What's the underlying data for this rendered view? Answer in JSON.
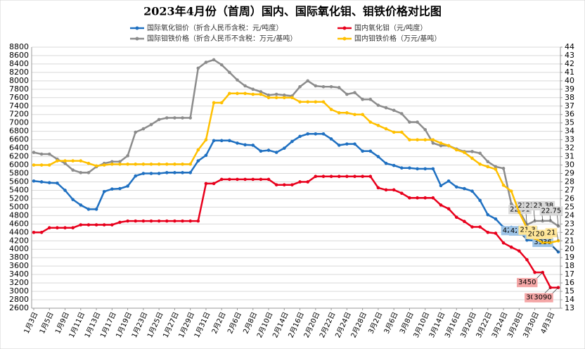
{
  "chart_data": {
    "type": "line",
    "title": "2023年4月份（首周）国内、国际氧化钼、钼铁价格对比图",
    "categories": [
      "1月3日",
      null,
      "1月5日",
      null,
      "1月9日",
      null,
      "1月11日",
      null,
      "1月13日",
      null,
      "1月17日",
      null,
      "1月19日",
      null,
      "1月23日",
      null,
      "1月25日",
      null,
      "1月27日",
      null,
      "1月29日",
      null,
      "1月31日",
      null,
      "2月2日",
      null,
      "2月6日",
      null,
      "2月8日",
      null,
      "2月10日",
      null,
      "2月14日",
      null,
      "2月16日",
      null,
      "2月20日",
      null,
      "2月22日",
      null,
      "2月24日",
      null,
      "2月28日",
      null,
      "3月2日",
      null,
      "3月6日",
      null,
      "3月8日",
      null,
      "3月10日",
      null,
      "3月14日",
      null,
      "3月16日",
      null,
      "3月20日",
      null,
      "3月22日",
      null,
      "3月24日",
      null,
      "3月28日",
      null,
      "3月30日",
      null,
      "4月3日",
      null
    ],
    "series": [
      {
        "name": "国际氧化钼价（折合人民币含税：元/吨度）",
        "color": "#1f70c1",
        "axis": "y",
        "values": [
          5620,
          5600,
          5580,
          5570,
          5400,
          5180,
          5050,
          4950,
          4950,
          5370,
          5430,
          5440,
          5500,
          5740,
          5800,
          5800,
          5800,
          5820,
          5820,
          5820,
          5820,
          6100,
          6230,
          6580,
          6580,
          6580,
          6520,
          6480,
          6470,
          6330,
          6350,
          6300,
          6400,
          6560,
          6680,
          6740,
          6740,
          6740,
          6620,
          6470,
          6500,
          6500,
          6330,
          6330,
          6200,
          6040,
          5990,
          5930,
          5930,
          5910,
          5910,
          5910,
          5510,
          5620,
          5480,
          5440,
          5380,
          5160,
          4820,
          4720,
          4520,
          4520,
          4520,
          4216,
          4205,
          4205,
          4122,
          3936
        ],
        "value_labels": [
          null,
          null,
          null,
          null,
          null,
          null,
          null,
          null,
          null,
          null,
          null,
          null,
          null,
          null,
          null,
          null,
          null,
          null,
          null,
          null,
          null,
          null,
          null,
          null,
          null,
          null,
          null,
          null,
          null,
          null,
          null,
          null,
          null,
          null,
          null,
          null,
          null,
          null,
          null,
          null,
          null,
          null,
          null,
          null,
          null,
          null,
          null,
          null,
          null,
          null,
          null,
          null,
          null,
          null,
          null,
          null,
          null,
          null,
          null,
          null,
          null,
          null,
          null,
          "4216",
          "4205",
          "4205",
          "4122",
          "3936"
        ]
      },
      {
        "name": "国内氧化钼（元/吨度）",
        "color": "#e8001c",
        "axis": "y",
        "values": [
          4400,
          4400,
          4510,
          4510,
          4510,
          4510,
          4580,
          4580,
          4580,
          4580,
          4580,
          4640,
          4670,
          4670,
          4670,
          4670,
          4670,
          4670,
          4670,
          4670,
          4670,
          4670,
          5560,
          5560,
          5660,
          5660,
          5660,
          5660,
          5660,
          5660,
          5660,
          5530,
          5530,
          5530,
          5600,
          5600,
          5730,
          5730,
          5730,
          5730,
          5730,
          5730,
          5730,
          5730,
          5460,
          5410,
          5410,
          5330,
          5220,
          5220,
          5220,
          5220,
          5050,
          4960,
          4760,
          4660,
          4530,
          4530,
          4400,
          4380,
          4150,
          4050,
          3960,
          3750,
          3450,
          3450,
          3090,
          3090
        ],
        "value_labels": [
          null,
          null,
          null,
          null,
          null,
          null,
          null,
          null,
          null,
          null,
          null,
          null,
          null,
          null,
          null,
          null,
          null,
          null,
          null,
          null,
          null,
          null,
          null,
          null,
          null,
          null,
          null,
          null,
          null,
          null,
          null,
          null,
          null,
          null,
          null,
          null,
          null,
          null,
          null,
          null,
          null,
          null,
          null,
          null,
          null,
          null,
          null,
          null,
          null,
          null,
          null,
          null,
          null,
          null,
          null,
          null,
          null,
          null,
          null,
          null,
          null,
          null,
          null,
          null,
          null,
          "3450",
          "3090",
          "3090"
        ]
      },
      {
        "name": "国际钼铁价格（折合人民币不含税：万元/基吨）",
        "color": "#8c8c8c",
        "axis": "y2",
        "values": [
          31.5,
          31.3,
          31.3,
          30.7,
          30.2,
          29.4,
          29.1,
          29.1,
          29.8,
          30.2,
          30.4,
          30.4,
          31.1,
          33.9,
          34.3,
          34.8,
          35.4,
          35.6,
          35.6,
          35.6,
          35.6,
          41.5,
          42.2,
          42.5,
          41.9,
          41.0,
          40.1,
          39.4,
          39.0,
          38.7,
          38.3,
          38.4,
          38.3,
          38.2,
          39.3,
          40.0,
          39.4,
          39.3,
          39.3,
          39.2,
          38.4,
          38.6,
          37.8,
          37.8,
          37.1,
          36.8,
          36.5,
          36.1,
          35.1,
          35.1,
          34.2,
          32.6,
          32.3,
          32.3,
          31.9,
          31.6,
          31.6,
          31.4,
          30.4,
          29.8,
          29.6,
          25.4,
          24.6,
          22.91,
          23.36,
          23.36,
          23.38,
          22.75
        ],
        "value_labels": [
          null,
          null,
          null,
          null,
          null,
          null,
          null,
          null,
          null,
          null,
          null,
          null,
          null,
          null,
          null,
          null,
          null,
          null,
          null,
          null,
          null,
          null,
          null,
          null,
          null,
          null,
          null,
          null,
          null,
          null,
          null,
          null,
          null,
          null,
          null,
          null,
          null,
          null,
          null,
          null,
          null,
          null,
          null,
          null,
          null,
          null,
          null,
          null,
          null,
          null,
          null,
          null,
          null,
          null,
          null,
          null,
          null,
          null,
          null,
          null,
          null,
          null,
          null,
          "22.91",
          "23.36",
          "23.36",
          "23.38",
          "22.75"
        ]
      },
      {
        "name": "国内钼铁价格（万元/基吨）",
        "color": "#ffc000",
        "axis": "y2",
        "values": [
          30.0,
          30.0,
          30.0,
          30.5,
          30.5,
          30.5,
          30.5,
          30.2,
          29.9,
          30.0,
          30.1,
          30.1,
          30.1,
          30.1,
          30.1,
          30.1,
          30.1,
          30.1,
          30.1,
          30.1,
          30.1,
          31.8,
          33.0,
          37.4,
          37.4,
          38.5,
          38.5,
          38.5,
          38.4,
          38.4,
          38.0,
          38.0,
          38.0,
          38.0,
          37.5,
          37.5,
          37.5,
          37.5,
          36.6,
          36.2,
          36.2,
          36.0,
          36.0,
          35.1,
          34.7,
          34.3,
          33.9,
          33.9,
          33.0,
          33.0,
          33.0,
          33.0,
          32.6,
          32.3,
          31.8,
          31.5,
          30.8,
          30.1,
          29.8,
          29.5,
          27.6,
          26.9,
          24.4,
          22.5,
          21.3,
          20.8,
          20.8,
          21
        ],
        "value_labels": [
          null,
          null,
          null,
          null,
          null,
          null,
          null,
          null,
          null,
          null,
          null,
          null,
          null,
          null,
          null,
          null,
          null,
          null,
          null,
          null,
          null,
          null,
          null,
          null,
          null,
          null,
          null,
          null,
          null,
          null,
          null,
          null,
          null,
          null,
          null,
          null,
          null,
          null,
          null,
          null,
          null,
          null,
          null,
          null,
          null,
          null,
          null,
          null,
          null,
          null,
          null,
          null,
          null,
          null,
          null,
          null,
          null,
          null,
          null,
          null,
          null,
          null,
          null,
          null,
          "21.3",
          "20.8",
          "20.8",
          "21"
        ]
      }
    ],
    "ylim": [
      2600,
      8800
    ],
    "yticks": [
      2600,
      2800,
      3000,
      3200,
      3400,
      3600,
      3800,
      4000,
      4200,
      4400,
      4600,
      4800,
      5000,
      5200,
      5400,
      5600,
      5800,
      6000,
      6200,
      6400,
      6600,
      6800,
      7000,
      7200,
      7400,
      7600,
      7800,
      8000,
      8200,
      8400,
      8600,
      8800
    ],
    "y2lim": [
      13,
      44
    ],
    "y2ticks": [
      13,
      14,
      15,
      16,
      17,
      18,
      19,
      20,
      21,
      22,
      23,
      24,
      25,
      26,
      27,
      28,
      29,
      30,
      31,
      32,
      33,
      34,
      35,
      36,
      37,
      38,
      39,
      40,
      41,
      42,
      43,
      44
    ],
    "grid": true
  }
}
